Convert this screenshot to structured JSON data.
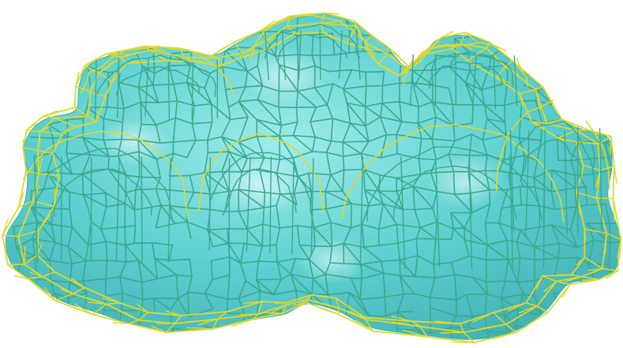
{
  "scene": {
    "subject": "molecular-density-surface",
    "background_color": "#ffffff",
    "surface_color": "#40c8c8",
    "surface_highlight_color": "#8ee8e6",
    "surface_shadow_color": "#21a2a6",
    "surface_opacity": 0.85,
    "mesh_front_color": "#e0d82c",
    "mesh_inner_color": "#3ca98e",
    "rendering": [
      "transparent-surface",
      "wireframe-mesh"
    ]
  }
}
